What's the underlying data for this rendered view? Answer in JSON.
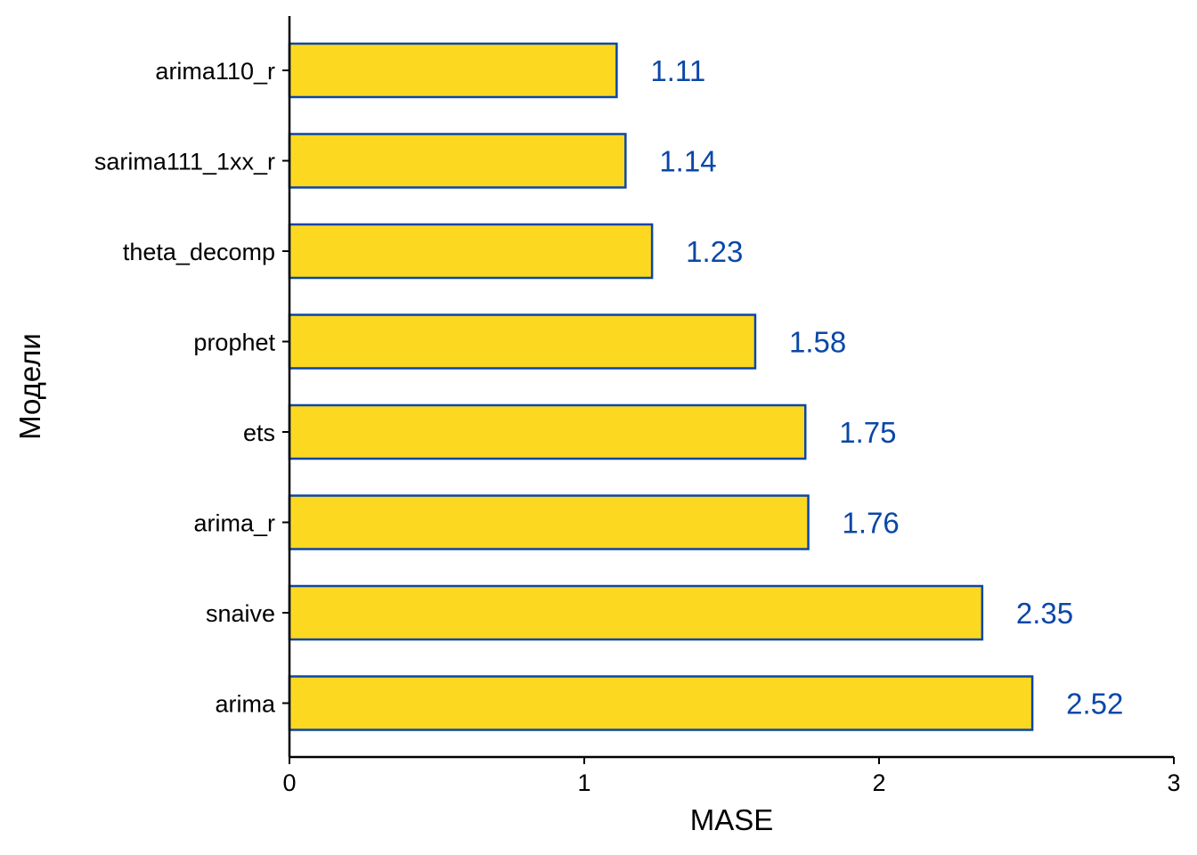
{
  "chart_data": {
    "type": "bar",
    "orientation": "horizontal",
    "categories": [
      "arima110_r",
      "sarima111_1xx_r",
      "theta_decomp",
      "prophet",
      "ets",
      "arima_r",
      "snaive",
      "arima"
    ],
    "values": [
      1.11,
      1.14,
      1.23,
      1.58,
      1.75,
      1.76,
      2.35,
      2.52
    ],
    "data_labels": [
      "1.11",
      "1.14",
      "1.23",
      "1.58",
      "1.75",
      "1.76",
      "2.35",
      "2.52"
    ],
    "xlabel": "MASE",
    "ylabel": "Модели",
    "xlim": [
      0,
      3
    ],
    "xticks": [
      0,
      1,
      2,
      3
    ],
    "xtick_labels": [
      "0",
      "1",
      "2",
      "3"
    ],
    "grid": false,
    "legend": "none",
    "colors": {
      "bar_fill": "#FDD821",
      "bar_outline": "#0A47A8",
      "data_label": "#0A47A8",
      "axis": "#000000"
    }
  }
}
